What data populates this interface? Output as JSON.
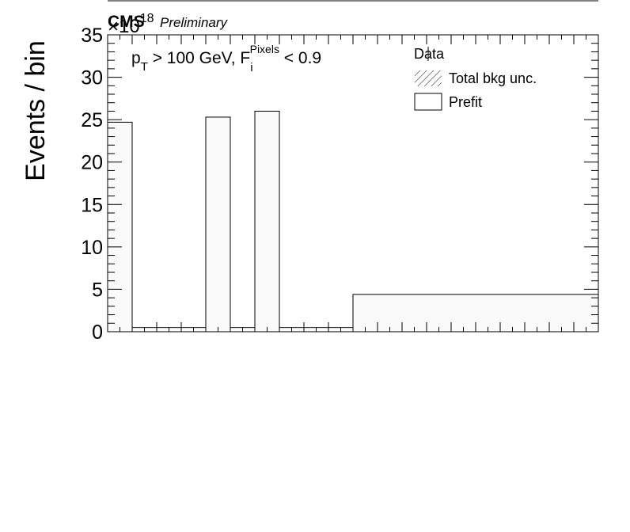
{
  "chart_data": {
    "type": "bar",
    "experiment": "CMS",
    "status": "Preliminary",
    "exponent_label": "×10",
    "exponent": "18",
    "ylabel": "Events / bin",
    "ylim": [
      0,
      35
    ],
    "yticks": [
      0,
      5,
      10,
      15,
      20,
      25,
      30,
      35
    ],
    "annotation": {
      "p": "p",
      "p_sub": "T",
      "mid": " > 100 GeV, F",
      "f_sub": "i",
      "f_sup": "Pixels",
      "tail": " < 0.9"
    },
    "legend": {
      "placement": "top-right",
      "entries": [
        "Data",
        "Total bkg unc.",
        "Prefit"
      ]
    },
    "series": [
      {
        "name": "Prefit",
        "bins": [
          {
            "x0": 0,
            "x1": 1,
            "y": 24.7
          },
          {
            "x0": 1,
            "x1": 4,
            "y": 0.5
          },
          {
            "x0": 4,
            "x1": 5,
            "y": 25.3
          },
          {
            "x0": 5,
            "x1": 6,
            "y": 0.5
          },
          {
            "x0": 6,
            "x1": 7,
            "y": 26.0
          },
          {
            "x0": 7,
            "x1": 10,
            "y": 0.5
          },
          {
            "x0": 10,
            "x1": 20,
            "y": 4.4
          }
        ]
      }
    ],
    "xlim": [
      0,
      20
    ]
  }
}
